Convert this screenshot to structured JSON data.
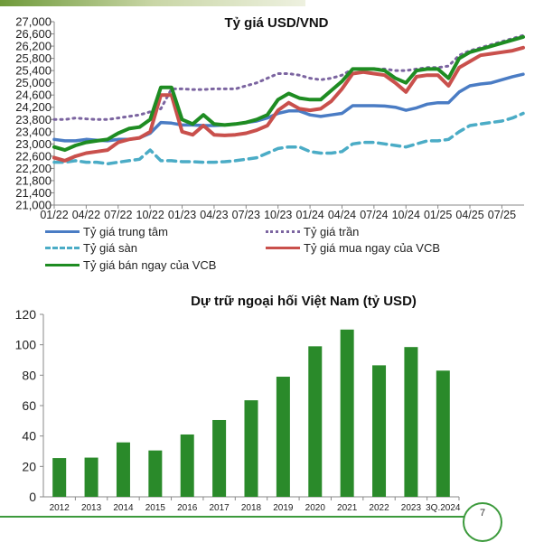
{
  "colors": {
    "central": "#4a7cc4",
    "ceiling": "#7b64a0",
    "floor": "#4bacc6",
    "vcb_buy": "#c9504c",
    "vcb_sell": "#1e8c22",
    "bars": "#2a8a2a"
  },
  "page_number": "7",
  "chart_data": [
    {
      "type": "line",
      "title": "Tỷ giá USD/VND",
      "x": [
        "01/22",
        "02/22",
        "03/22",
        "04/22",
        "05/22",
        "06/22",
        "07/22",
        "08/22",
        "09/22",
        "10/22",
        "11/22",
        "12/22",
        "01/23",
        "02/23",
        "03/23",
        "04/23",
        "05/23",
        "06/23",
        "07/23",
        "08/23",
        "09/23",
        "10/23",
        "11/23",
        "12/23",
        "01/24",
        "02/24",
        "03/24",
        "04/24",
        "05/24",
        "06/24",
        "07/24",
        "08/24",
        "09/24",
        "10/24",
        "11/24",
        "12/24",
        "01/25",
        "02/25",
        "03/25",
        "04/25",
        "05/25",
        "06/25",
        "07/25",
        "08/25",
        "09/25"
      ],
      "x_tick_labels": [
        "01/22",
        "04/22",
        "07/22",
        "10/22",
        "01/23",
        "04/23",
        "07/23",
        "10/23",
        "01/24",
        "04/24",
        "07/24",
        "10/24",
        "01/25",
        "04/25",
        "07/25"
      ],
      "y_tick_labels": [
        "21,000",
        "21,400",
        "21,800",
        "22,200",
        "22,600",
        "23,000",
        "23,400",
        "23,800",
        "24,200",
        "24,600",
        "25,000",
        "25,400",
        "25,800",
        "26,200",
        "26,600",
        "27,000"
      ],
      "ylim": [
        21000,
        27000
      ],
      "grid": false,
      "legend_position": "bottom",
      "series": [
        {
          "name": "Tỷ giá trung tâm",
          "style": "solid",
          "values": [
            23150,
            23100,
            23100,
            23150,
            23120,
            23100,
            23150,
            23150,
            23200,
            23350,
            23700,
            23680,
            23620,
            23620,
            23600,
            23600,
            23620,
            23650,
            23700,
            23750,
            23850,
            24000,
            24080,
            24080,
            23950,
            23900,
            23950,
            24000,
            24250,
            24250,
            24250,
            24240,
            24200,
            24100,
            24180,
            24300,
            24350,
            24350,
            24700,
            24900,
            24960,
            25000,
            25100,
            25200,
            25280
          ]
        },
        {
          "name": "Tỷ giá trần",
          "style": "dotted",
          "values": [
            23800,
            23800,
            23850,
            23820,
            23800,
            23800,
            23850,
            23900,
            23950,
            24050,
            24150,
            24800,
            24800,
            24780,
            24780,
            24800,
            24800,
            24800,
            24900,
            25000,
            25150,
            25300,
            25300,
            25250,
            25150,
            25100,
            25150,
            25250,
            25450,
            25450,
            25450,
            25450,
            25400,
            25400,
            25450,
            25500,
            25500,
            25550,
            25900,
            26050,
            26150,
            26250,
            26350,
            26450,
            26550
          ]
        },
        {
          "name": "Tỷ giá sàn",
          "style": "dashed",
          "values": [
            22400,
            22400,
            22450,
            22400,
            22400,
            22350,
            22400,
            22450,
            22500,
            22800,
            22450,
            22450,
            22420,
            22420,
            22400,
            22400,
            22420,
            22450,
            22500,
            22550,
            22700,
            22850,
            22900,
            22900,
            22750,
            22700,
            22700,
            22750,
            23000,
            23050,
            23050,
            23000,
            22950,
            22900,
            23000,
            23100,
            23100,
            23150,
            23400,
            23600,
            23650,
            23700,
            23750,
            23850,
            24000
          ]
        },
        {
          "name": "Tỷ giá mua ngay của VCB",
          "style": "solid",
          "values": [
            22550,
            22450,
            22600,
            22700,
            22750,
            22800,
            23050,
            23150,
            23200,
            23400,
            24600,
            24600,
            23400,
            23300,
            23600,
            23300,
            23280,
            23300,
            23350,
            23450,
            23600,
            24100,
            24350,
            24150,
            24100,
            24150,
            24400,
            24800,
            25300,
            25350,
            25300,
            25250,
            25000,
            24700,
            25200,
            25250,
            25250,
            24900,
            25500,
            25700,
            25900,
            25950,
            26000,
            26050,
            26150
          ]
        },
        {
          "name": "Tỷ giá bán ngay của VCB",
          "style": "solid",
          "values": [
            22900,
            22800,
            22950,
            23050,
            23100,
            23150,
            23350,
            23500,
            23550,
            23800,
            24850,
            24850,
            23800,
            23650,
            23950,
            23650,
            23620,
            23650,
            23700,
            23800,
            23950,
            24450,
            24650,
            24500,
            24450,
            24450,
            24750,
            25050,
            25450,
            25450,
            25450,
            25400,
            25150,
            25000,
            25400,
            25450,
            25450,
            25150,
            25800,
            26000,
            26100,
            26200,
            26300,
            26400,
            26500
          ]
        }
      ]
    },
    {
      "type": "bar",
      "title": "Dự trữ ngoại hối Việt Nam (tỷ USD)",
      "categories": [
        "2012",
        "2013",
        "2014",
        "2015",
        "2016",
        "2017",
        "2018",
        "2019",
        "2020",
        "2021",
        "2022",
        "2023",
        "3Q.2024"
      ],
      "values": [
        25.5,
        25.8,
        35.8,
        30.5,
        41,
        50.5,
        63.5,
        79,
        99,
        110,
        86.5,
        98.5,
        83
      ],
      "y_tick_labels": [
        "0",
        "20",
        "40",
        "60",
        "80",
        "100",
        "120"
      ],
      "ylim": [
        0,
        120
      ],
      "grid": false,
      "xlabel": "",
      "ylabel": ""
    }
  ]
}
